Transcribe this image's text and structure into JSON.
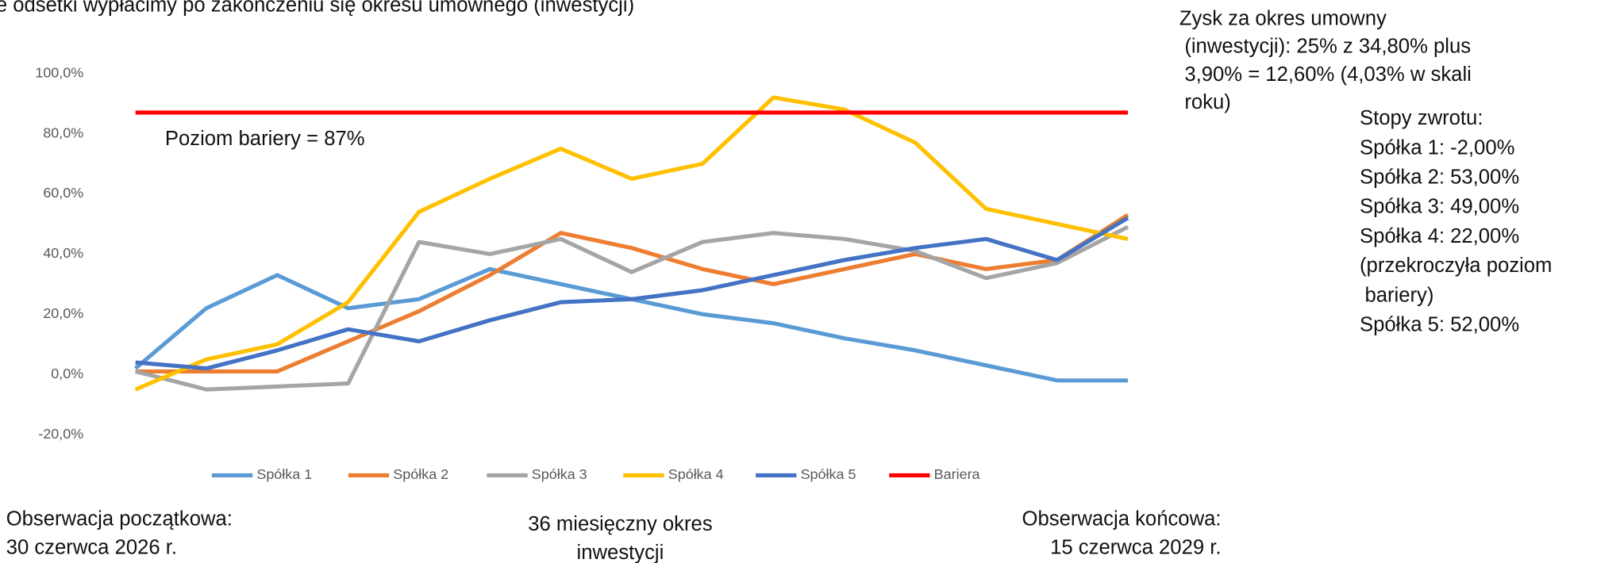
{
  "header": "e odsetki wypłacimy po zakończeniu się okresu umownego (inwestycji)",
  "chart_data": {
    "type": "line",
    "categories": [
      null,
      null,
      null,
      null,
      null,
      null,
      null,
      null,
      null,
      null,
      null,
      null,
      null,
      null,
      null
    ],
    "series": [
      {
        "name": "Spółka 1",
        "color": "#5b9bd5",
        "values": [
          2,
          22,
          33,
          22,
          25,
          35,
          30,
          25,
          20,
          17,
          12,
          8,
          3,
          -2,
          -2
        ]
      },
      {
        "name": "Spółka 2",
        "color": "#ed7d31",
        "values": [
          1,
          1,
          1,
          11,
          21,
          33,
          47,
          42,
          35,
          30,
          35,
          40,
          35,
          38,
          53
        ]
      },
      {
        "name": "Spółka 3",
        "color": "#a5a5a5",
        "values": [
          1,
          -5,
          -4,
          -3,
          44,
          40,
          45,
          34,
          44,
          47,
          45,
          41,
          32,
          37,
          49
        ]
      },
      {
        "name": "Spółka 4",
        "color": "#ffc000",
        "values": [
          -5,
          5,
          10,
          24,
          54,
          65,
          75,
          65,
          70,
          92,
          88,
          77,
          55,
          50,
          45
        ]
      },
      {
        "name": "Spółka 5",
        "color": "#4472c4",
        "values": [
          4,
          2,
          8,
          15,
          11,
          18,
          24,
          25,
          28,
          33,
          38,
          42,
          45,
          38,
          52
        ]
      },
      {
        "name": "Bariera",
        "color": "#ff0000",
        "values": [
          87,
          87,
          87,
          87,
          87,
          87,
          87,
          87,
          87,
          87,
          87,
          87,
          87,
          87,
          87
        ]
      }
    ],
    "ylim": [
      -20,
      100
    ],
    "yticks": [
      {
        "value": -20,
        "label": "-20,0%"
      },
      {
        "value": 0,
        "label": "0,0%"
      },
      {
        "value": 20,
        "label": "20,0%"
      },
      {
        "value": 40,
        "label": "40,0%"
      },
      {
        "value": 60,
        "label": "60,0%"
      },
      {
        "value": 80,
        "label": "80,0%"
      },
      {
        "value": 100,
        "label": "100,0%"
      }
    ],
    "annotation": "Poziom bariery = 87%",
    "legend": "bottom"
  },
  "profit_note": [
    "Zysk za okres umowny",
    "(inwestycji): 25% z 34,80% plus",
    "3,90% = 12,60% (4,03% w skali",
    "roku)"
  ],
  "returns_note": [
    "Stopy zwrotu:",
    "Spółka 1: -2,00%",
    "Spółka 2: 53,00%",
    "Spółka 3: 49,00%",
    "Spółka 4: 22,00%",
    "(przekroczyła poziom",
    "bariery)",
    "Spółka 5: 52,00%"
  ],
  "footer": {
    "start": [
      "Obserwacja początkowa:",
      "30 czerwca 2026 r."
    ],
    "period": [
      "36 miesięczny okres",
      "inwestycji"
    ],
    "end": [
      "Obserwacja  końcowa:",
      "15 czerwca 2029 r."
    ]
  }
}
